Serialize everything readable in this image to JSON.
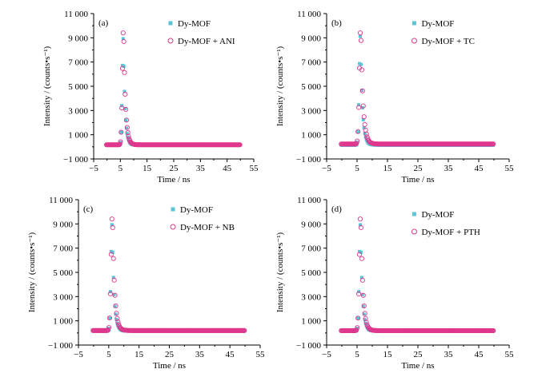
{
  "colors": {
    "sq": "#5bc4d6",
    "circ": "#e0368c",
    "axis": "#000000"
  },
  "chart_data": [
    {
      "type": "scatter",
      "panel_label": "(a)",
      "xlabel": "Time / ns",
      "ylabel": "Intensity / (counts•s⁻¹)",
      "xlim": [
        -5,
        55
      ],
      "ylim": [
        -1000,
        11000
      ],
      "xticks": [
        -5,
        5,
        15,
        25,
        35,
        45,
        55
      ],
      "xtick_labels": [
        "−5",
        "5",
        "15",
        "25",
        "35",
        "45",
        "55"
      ],
      "yticks": [
        -1000,
        1000,
        3000,
        5000,
        7000,
        9000,
        11000
      ],
      "ytick_labels": [
        "−1 000",
        "1 000",
        "3 000",
        "5 000",
        "7 000",
        "9 000",
        "11 000"
      ],
      "legend_position": "top-center",
      "series": [
        {
          "name": "Dy-MOF",
          "marker": "square",
          "peak": 9000,
          "peak_x": 6.1,
          "rise": 0.55,
          "decay": 0.65,
          "tail": 140,
          "step": 0.25
        },
        {
          "name": "Dy-MOF + ANI",
          "marker": "circle-open",
          "peak": 10000,
          "peak_x": 6.2,
          "rise": 0.6,
          "decay": 0.7,
          "tail": 170,
          "step": 0.25
        }
      ]
    },
    {
      "type": "scatter",
      "panel_label": "(b)",
      "xlabel": "Time / ns",
      "ylabel": "Intensity / (counts•s⁻¹)",
      "xlim": [
        -5,
        55
      ],
      "ylim": [
        -1000,
        11000
      ],
      "xticks": [
        -5,
        5,
        15,
        25,
        35,
        45,
        55
      ],
      "xtick_labels": [
        "−5",
        "5",
        "15",
        "25",
        "35",
        "45",
        "55"
      ],
      "yticks": [
        -1000,
        1000,
        3000,
        5000,
        7000,
        9000,
        11000
      ],
      "ytick_labels": [
        "−1 000",
        "1 000",
        "3 000",
        "5 000",
        "7 000",
        "9 000",
        "11 000"
      ],
      "legend_position": "top-center",
      "series": [
        {
          "name": "Dy-MOF",
          "marker": "square",
          "peak": 9200,
          "peak_x": 6.1,
          "rise": 0.55,
          "decay": 0.65,
          "tail": 140,
          "step": 0.25
        },
        {
          "name": "Dy-MOF + TC",
          "marker": "circle-open",
          "peak": 10000,
          "peak_x": 6.2,
          "rise": 0.6,
          "decay": 0.75,
          "tail": 230,
          "step": 0.25
        }
      ]
    },
    {
      "type": "scatter",
      "panel_label": "(c)",
      "xlabel": "Time / ns",
      "ylabel": "Intensity / (counts•s⁻¹)",
      "xlim": [
        -5,
        55
      ],
      "ylim": [
        -1000,
        11000
      ],
      "xticks": [
        -5,
        5,
        15,
        25,
        35,
        45,
        55
      ],
      "xtick_labels": [
        "−5",
        "5",
        "15",
        "25",
        "35",
        "45",
        "55"
      ],
      "yticks": [
        -1000,
        1000,
        3000,
        5000,
        7000,
        9000,
        11000
      ],
      "ytick_labels": [
        "−1 000",
        "1 000",
        "3 000",
        "5 000",
        "7 000",
        "9 000",
        "11 000"
      ],
      "legend_position": "top-right",
      "series": [
        {
          "name": "Dy-MOF",
          "marker": "square",
          "peak": 9000,
          "peak_x": 6.1,
          "rise": 0.55,
          "decay": 0.65,
          "tail": 150,
          "step": 0.25
        },
        {
          "name": "Dy-MOF + NB",
          "marker": "circle-open",
          "peak": 10000,
          "peak_x": 6.2,
          "rise": 0.6,
          "decay": 0.7,
          "tail": 200,
          "step": 0.25
        }
      ]
    },
    {
      "type": "scatter",
      "panel_label": "(d)",
      "xlabel": "Time / ns",
      "ylabel": "Intensity / (counts•s⁻¹)",
      "xlim": [
        -5,
        55
      ],
      "ylim": [
        -1000,
        11000
      ],
      "xticks": [
        -5,
        5,
        15,
        25,
        35,
        45,
        55
      ],
      "xtick_labels": [
        "−5",
        "5",
        "15",
        "25",
        "35",
        "45",
        "55"
      ],
      "yticks": [
        -1000,
        1000,
        3000,
        5000,
        7000,
        9000,
        11000
      ],
      "ytick_labels": [
        "−1 000",
        "1 000",
        "3 000",
        "5 000",
        "7 000",
        "9 000",
        "11 000"
      ],
      "legend_position": "top-center",
      "series": [
        {
          "name": "Dy-MOF",
          "marker": "square",
          "peak": 9000,
          "peak_x": 6.1,
          "rise": 0.55,
          "decay": 0.65,
          "tail": 150,
          "step": 0.25
        },
        {
          "name": "Dy-MOF + PTH",
          "marker": "circle-open",
          "peak": 10000,
          "peak_x": 6.2,
          "rise": 0.6,
          "decay": 0.7,
          "tail": 190,
          "step": 0.25
        }
      ]
    }
  ]
}
